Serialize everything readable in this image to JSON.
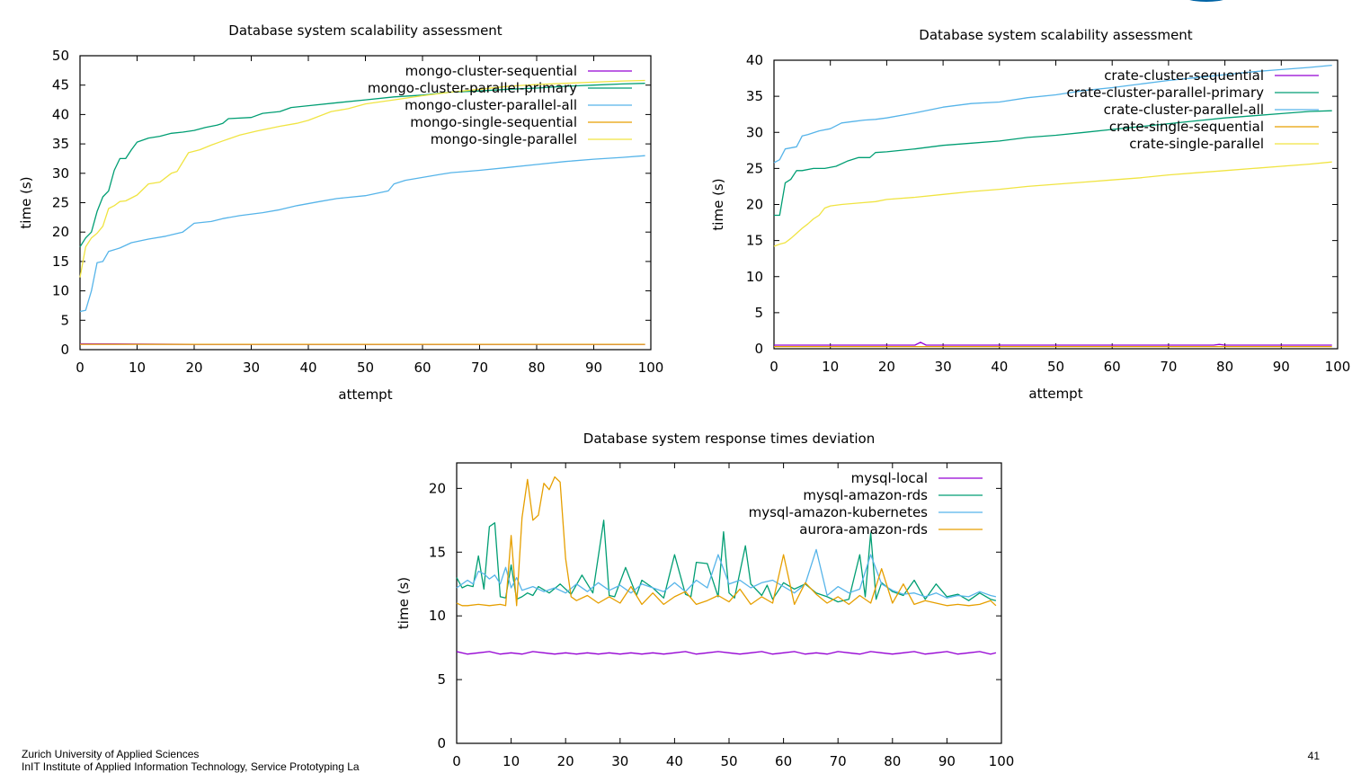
{
  "footer": {
    "line1": "Zurich University of Applied Sciences",
    "line2": "InIT Institute of  Applied Information Technology, Service Prototyping La"
  },
  "page_number": "41",
  "colors": {
    "purple": "#9400d3",
    "green": "#009e73",
    "blue": "#56b4e9",
    "orange": "#e69f00",
    "yellow": "#f0e442",
    "logo": "#0064a6"
  },
  "chart_data": [
    {
      "type": "line",
      "title": "Database system scalability assessment",
      "xlabel": "attempt",
      "ylabel": "time (s)",
      "xlim": [
        0,
        100
      ],
      "ylim": [
        0,
        50
      ],
      "xticks": [
        0,
        10,
        20,
        30,
        40,
        50,
        60,
        70,
        80,
        90,
        100
      ],
      "yticks": [
        0,
        5,
        10,
        15,
        20,
        25,
        30,
        35,
        40,
        45,
        50
      ],
      "grid": false,
      "legend_position": "top-right",
      "series": [
        {
          "name": "mongo-cluster-sequential",
          "color": "#9400d3",
          "x": [
            0,
            20,
            40,
            60,
            80,
            99
          ],
          "y": [
            1.0,
            0.9,
            0.9,
            0.9,
            0.9,
            0.9
          ]
        },
        {
          "name": "mongo-cluster-parallel-primary",
          "color": "#009e73",
          "x": [
            0,
            1,
            2,
            3,
            4,
            5,
            6,
            7,
            8,
            9,
            10,
            12,
            14,
            16,
            18,
            20,
            22,
            24,
            25,
            26,
            30,
            32,
            35,
            37,
            40,
            45,
            50,
            55,
            60,
            65,
            70,
            75,
            80,
            85,
            90,
            95,
            99
          ],
          "y": [
            17.5,
            19,
            20,
            23.5,
            26,
            27,
            30.5,
            32.5,
            32.5,
            34,
            35.3,
            36,
            36.3,
            36.8,
            37,
            37.3,
            37.8,
            38.2,
            38.5,
            39.3,
            39.5,
            40.2,
            40.5,
            41.2,
            41.5,
            42,
            42.5,
            43,
            43.3,
            43.8,
            44,
            44.3,
            44.5,
            44.8,
            45,
            45.2,
            45.3
          ]
        },
        {
          "name": "mongo-cluster-parallel-all",
          "color": "#56b4e9",
          "x": [
            0,
            1,
            2,
            3,
            4,
            5,
            7,
            9,
            12,
            15,
            18,
            20,
            23,
            25,
            28,
            32,
            35,
            38,
            42,
            45,
            50,
            54,
            55,
            57,
            60,
            63,
            65,
            70,
            75,
            80,
            85,
            90,
            95,
            99
          ],
          "y": [
            6.5,
            6.7,
            10,
            14.8,
            15,
            16.7,
            17.3,
            18.2,
            18.8,
            19.3,
            20,
            21.5,
            21.8,
            22.3,
            22.8,
            23.3,
            23.8,
            24.5,
            25.2,
            25.7,
            26.2,
            27,
            28.2,
            28.8,
            29.3,
            29.8,
            30.1,
            30.5,
            31,
            31.5,
            32,
            32.4,
            32.7,
            33
          ]
        },
        {
          "name": "mongo-single-sequential",
          "color": "#e69f00",
          "x": [
            0,
            20,
            40,
            60,
            80,
            99
          ],
          "y": [
            0.9,
            0.9,
            0.9,
            0.9,
            0.9,
            0.9
          ]
        },
        {
          "name": "mongo-single-parallel",
          "color": "#f0e442",
          "x": [
            0,
            1,
            2,
            3,
            4,
            5,
            6,
            7,
            8,
            10,
            12,
            14,
            16,
            17,
            19,
            21,
            23,
            25,
            28,
            31,
            35,
            38,
            40,
            44,
            47,
            50,
            55,
            60,
            65,
            70,
            75,
            80,
            85,
            90,
            95,
            99
          ],
          "y": [
            12.3,
            17.5,
            19,
            19.8,
            21,
            24,
            24.5,
            25.2,
            25.3,
            26.3,
            28.2,
            28.5,
            30,
            30.3,
            33.5,
            34,
            34.8,
            35.5,
            36.5,
            37.2,
            38,
            38.5,
            39,
            40.5,
            41,
            41.8,
            42.5,
            43.2,
            43.8,
            44.3,
            44.8,
            45.1,
            45.3,
            45.5,
            45.7,
            45.8
          ]
        }
      ]
    },
    {
      "type": "line",
      "title": "Database system scalability assessment",
      "xlabel": "attempt",
      "ylabel": "time (s)",
      "xlim": [
        0,
        100
      ],
      "ylim": [
        0,
        40
      ],
      "xticks": [
        0,
        10,
        20,
        30,
        40,
        50,
        60,
        70,
        80,
        90,
        100
      ],
      "yticks": [
        0,
        5,
        10,
        15,
        20,
        25,
        30,
        35,
        40
      ],
      "grid": false,
      "legend_position": "top-right",
      "series": [
        {
          "name": "crate-cluster-sequential",
          "color": "#9400d3",
          "x": [
            0,
            10,
            20,
            25,
            26,
            27,
            40,
            60,
            78,
            79,
            80,
            99
          ],
          "y": [
            0.5,
            0.5,
            0.5,
            0.5,
            0.9,
            0.5,
            0.5,
            0.5,
            0.5,
            0.6,
            0.5,
            0.5
          ]
        },
        {
          "name": "crate-cluster-parallel-primary",
          "color": "#009e73",
          "x": [
            0,
            1,
            2,
            3,
            4,
            5,
            7,
            9,
            11,
            13,
            15,
            17,
            18,
            20,
            25,
            30,
            35,
            40,
            45,
            50,
            55,
            60,
            65,
            70,
            75,
            80,
            85,
            90,
            95,
            99
          ],
          "y": [
            18.5,
            18.5,
            23,
            23.5,
            24.7,
            24.7,
            25,
            25,
            25.3,
            26,
            26.5,
            26.5,
            27.2,
            27.3,
            27.7,
            28.2,
            28.5,
            28.8,
            29.3,
            29.6,
            30,
            30.4,
            30.8,
            31.2,
            31.6,
            32,
            32.3,
            32.6,
            32.9,
            33
          ]
        },
        {
          "name": "crate-cluster-parallel-all",
          "color": "#56b4e9",
          "x": [
            0,
            1,
            2,
            4,
            5,
            6,
            8,
            10,
            12,
            14,
            16,
            18,
            20,
            25,
            30,
            35,
            40,
            45,
            50,
            55,
            60,
            65,
            70,
            75,
            80,
            85,
            90,
            95,
            99
          ],
          "y": [
            25.8,
            26.2,
            27.7,
            28,
            29.5,
            29.7,
            30.2,
            30.5,
            31.3,
            31.5,
            31.7,
            31.8,
            32,
            32.7,
            33.5,
            34,
            34.2,
            34.8,
            35.2,
            35.8,
            36.2,
            36.7,
            37.2,
            37.6,
            38,
            38.4,
            38.7,
            39,
            39.3
          ]
        },
        {
          "name": "crate-single-sequential",
          "color": "#e69f00",
          "x": [
            0,
            20,
            40,
            60,
            80,
            99
          ],
          "y": [
            0.3,
            0.3,
            0.3,
            0.3,
            0.3,
            0.3
          ]
        },
        {
          "name": "crate-single-parallel",
          "color": "#f0e442",
          "x": [
            0,
            1,
            2,
            3,
            4,
            5,
            6,
            7,
            8,
            9,
            10,
            12,
            15,
            18,
            20,
            25,
            30,
            35,
            40,
            45,
            50,
            55,
            60,
            65,
            70,
            75,
            80,
            85,
            90,
            95,
            99
          ],
          "y": [
            14.2,
            14.5,
            14.7,
            15.3,
            16,
            16.7,
            17.3,
            18,
            18.5,
            19.5,
            19.8,
            20,
            20.2,
            20.4,
            20.7,
            21,
            21.4,
            21.8,
            22.1,
            22.5,
            22.8,
            23.1,
            23.4,
            23.7,
            24.1,
            24.4,
            24.7,
            25,
            25.3,
            25.6,
            25.9
          ]
        }
      ]
    },
    {
      "type": "line",
      "title": "Database system response times deviation",
      "xlabel": "",
      "ylabel": "time (s)",
      "xlim": [
        0,
        100
      ],
      "ylim": [
        0,
        22
      ],
      "xticks": [
        0,
        10,
        20,
        30,
        40,
        50,
        60,
        70,
        80,
        90,
        100
      ],
      "yticks": [
        0,
        5,
        10,
        15,
        20
      ],
      "grid": false,
      "legend_position": "top-right",
      "series": [
        {
          "name": "mysql-local",
          "color": "#9400d3",
          "x": [
            0,
            2,
            4,
            6,
            8,
            10,
            12,
            14,
            16,
            18,
            20,
            22,
            24,
            26,
            28,
            30,
            32,
            34,
            36,
            38,
            40,
            42,
            44,
            46,
            48,
            50,
            52,
            54,
            56,
            58,
            60,
            62,
            64,
            66,
            68,
            70,
            72,
            74,
            76,
            78,
            80,
            82,
            84,
            86,
            88,
            90,
            92,
            94,
            96,
            98,
            99
          ],
          "y": [
            7.2,
            7.0,
            7.1,
            7.2,
            7.0,
            7.1,
            7.0,
            7.2,
            7.1,
            7.0,
            7.1,
            7.0,
            7.1,
            7.0,
            7.1,
            7.0,
            7.1,
            7.0,
            7.1,
            7.0,
            7.1,
            7.2,
            7.0,
            7.1,
            7.2,
            7.1,
            7.0,
            7.1,
            7.2,
            7.0,
            7.1,
            7.2,
            7.0,
            7.1,
            7.0,
            7.2,
            7.1,
            7.0,
            7.2,
            7.1,
            7.0,
            7.1,
            7.2,
            7.0,
            7.1,
            7.2,
            7.0,
            7.1,
            7.2,
            7.0,
            7.1
          ]
        },
        {
          "name": "mysql-amazon-rds",
          "color": "#009e73",
          "x": [
            0,
            1,
            2,
            3,
            4,
            5,
            6,
            7,
            8,
            9,
            10,
            11,
            12,
            13,
            14,
            15,
            17,
            19,
            21,
            23,
            25,
            27,
            28,
            29,
            31,
            33,
            34,
            36,
            38,
            40,
            42,
            43,
            44,
            46,
            48,
            49,
            50,
            51,
            53,
            54,
            56,
            57,
            58,
            60,
            62,
            64,
            66,
            68,
            70,
            72,
            74,
            75,
            76,
            77,
            78,
            80,
            82,
            84,
            86,
            88,
            90,
            92,
            94,
            96,
            98,
            99
          ],
          "y": [
            13,
            12.2,
            12.4,
            12.3,
            14.7,
            12.1,
            17,
            17.3,
            11.5,
            11.4,
            14,
            11.3,
            11.5,
            11.8,
            11.6,
            12.3,
            11.8,
            12.5,
            11.7,
            13.2,
            11.8,
            17.5,
            11.6,
            11.5,
            13.8,
            11.6,
            12.8,
            12.2,
            11.4,
            14.8,
            11.7,
            11.5,
            14.2,
            14.1,
            11.5,
            16.6,
            11.8,
            11.4,
            15.5,
            12.5,
            11.6,
            12.4,
            11.3,
            12.6,
            12.1,
            12.5,
            11.8,
            11.5,
            11.1,
            11.3,
            14.8,
            11.5,
            16.5,
            11.3,
            12.6,
            11.9,
            11.6,
            12.8,
            11.3,
            12.5,
            11.5,
            11.7,
            11.2,
            11.8,
            11.3,
            11.2
          ]
        },
        {
          "name": "mysql-amazon-kubernetes",
          "color": "#56b4e9",
          "x": [
            0,
            2,
            3,
            4,
            5,
            6,
            7,
            8,
            9,
            10,
            11,
            12,
            14,
            16,
            18,
            20,
            22,
            24,
            26,
            28,
            30,
            32,
            34,
            36,
            38,
            40,
            42,
            44,
            46,
            48,
            50,
            52,
            54,
            56,
            58,
            60,
            62,
            64,
            66,
            68,
            70,
            72,
            74,
            76,
            78,
            80,
            82,
            84,
            86,
            88,
            90,
            92,
            94,
            96,
            98,
            99
          ],
          "y": [
            12.2,
            12.8,
            12.5,
            13.5,
            13.3,
            12.9,
            13.2,
            12.5,
            13.8,
            12.2,
            13,
            12,
            12.3,
            11.9,
            12.2,
            11.8,
            12.5,
            11.9,
            12.6,
            12,
            12.4,
            11.8,
            12.5,
            12.2,
            11.9,
            12.6,
            11.9,
            12.8,
            12.2,
            14.8,
            12.5,
            12.8,
            12.2,
            12.6,
            12.8,
            12.3,
            11.8,
            12.5,
            15.2,
            11.6,
            12.3,
            11.8,
            12.1,
            14.8,
            12.5,
            12,
            11.7,
            11.8,
            11.5,
            11.8,
            11.4,
            11.6,
            11.5,
            11.9,
            11.6,
            11.5
          ]
        },
        {
          "name": "aurora-amazon-rds",
          "color": "#e69f00",
          "x": [
            0,
            1,
            2,
            4,
            6,
            8,
            9,
            10,
            11,
            12,
            13,
            14,
            15,
            16,
            17,
            18,
            19,
            20,
            21,
            22,
            24,
            26,
            28,
            30,
            32,
            34,
            36,
            38,
            40,
            42,
            44,
            46,
            48,
            50,
            52,
            54,
            56,
            58,
            60,
            62,
            64,
            66,
            68,
            70,
            72,
            74,
            76,
            78,
            80,
            82,
            84,
            86,
            88,
            90,
            92,
            94,
            96,
            98,
            99
          ],
          "y": [
            11.0,
            10.8,
            10.8,
            10.9,
            10.8,
            10.9,
            10.8,
            16.3,
            10.8,
            17.7,
            20.7,
            17.5,
            17.9,
            20.4,
            19.9,
            20.9,
            20.5,
            14.5,
            11.5,
            11.2,
            11.6,
            11,
            11.5,
            11,
            12.3,
            10.9,
            11.8,
            10.9,
            11.5,
            11.9,
            10.9,
            11.2,
            11.6,
            11.1,
            12.1,
            10.9,
            11.5,
            11,
            14.8,
            10.9,
            12.6,
            11.7,
            11,
            11.5,
            10.9,
            11.6,
            11,
            13.7,
            11,
            12.5,
            10.9,
            11.2,
            11,
            10.8,
            10.9,
            10.8,
            10.9,
            11.2,
            10.8
          ]
        }
      ]
    }
  ]
}
